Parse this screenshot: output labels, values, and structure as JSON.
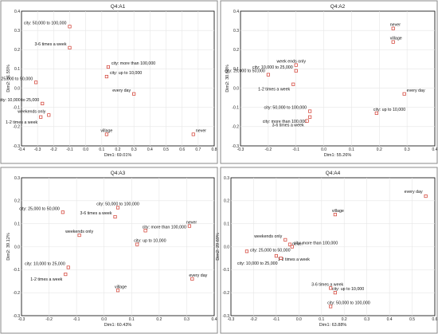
{
  "chart_data": [
    {
      "type": "scatter",
      "title": "Q4:A1",
      "xlabel": "Dim1: 69.01%",
      "ylabel": "Dim2: 31.55%",
      "xlim": [
        -0.4,
        0.8
      ],
      "ylim": [
        -0.3,
        0.4
      ],
      "xticks": [
        "-0.4",
        "-0.3",
        "-0.2",
        "-0.1",
        "0.0",
        "0.1",
        "0.2",
        "0.3",
        "0.4",
        "0.5",
        "0.6",
        "0.7",
        "0.8"
      ],
      "yticks": [
        "-0.3",
        "-0.2",
        "-0.1",
        "0.0",
        "0.1",
        "0.2",
        "0.3",
        "0.4"
      ],
      "grid": true,
      "points": [
        {
          "label": "city: 50,000 to 100,000",
          "x": -0.1,
          "y": 0.32
        },
        {
          "label": "3-6 times a week",
          "x": -0.1,
          "y": 0.21
        },
        {
          "label": "city: more than 100,000",
          "x": 0.14,
          "y": 0.11
        },
        {
          "label": "city: up to 10,000",
          "x": 0.13,
          "y": 0.06
        },
        {
          "label": "city: 25,000 to 50,000",
          "x": -0.31,
          "y": 0.03
        },
        {
          "label": "every day",
          "x": 0.3,
          "y": -0.03
        },
        {
          "label": "city: 10,000 to 25,000",
          "x": -0.27,
          "y": -0.08
        },
        {
          "label": "weekends only",
          "x": -0.23,
          "y": -0.14
        },
        {
          "label": "1-2 times a week",
          "x": -0.28,
          "y": -0.15
        },
        {
          "label": "village",
          "x": 0.13,
          "y": -0.24
        },
        {
          "label": "never",
          "x": 0.67,
          "y": -0.24
        }
      ]
    },
    {
      "type": "scatter",
      "title": "Q4:A2",
      "xlabel": "Dim1: 55.26%",
      "ylabel": "Dim2: 30.68%",
      "xlim": [
        -0.3,
        0.4
      ],
      "ylim": [
        -0.3,
        0.4
      ],
      "xticks": [
        "-0.3",
        "-0.2",
        "-0.1",
        "0.0",
        "0.1",
        "0.2",
        "0.3",
        "0.4"
      ],
      "yticks": [
        "-0.3",
        "-0.2",
        "-0.1",
        "0.0",
        "0.1",
        "0.2",
        "0.3",
        "0.4"
      ],
      "grid": true,
      "points": [
        {
          "label": "never",
          "x": 0.25,
          "y": 0.31
        },
        {
          "label": "village",
          "x": 0.25,
          "y": 0.24
        },
        {
          "label": "week ends only",
          "x": -0.1,
          "y": 0.12
        },
        {
          "label": "city: 10,000 to 25,000",
          "x": -0.1,
          "y": 0.09
        },
        {
          "label": "city: 25,000 to 50,000",
          "x": -0.2,
          "y": 0.07
        },
        {
          "label": "1-2 times a week",
          "x": -0.11,
          "y": 0.02
        },
        {
          "label": "every day",
          "x": 0.29,
          "y": -0.03
        },
        {
          "label": "city: 50,000 to 100,000",
          "x": -0.05,
          "y": -0.12
        },
        {
          "label": "city: up to 10,000",
          "x": 0.19,
          "y": -0.13
        },
        {
          "label": "city: more than 100,000",
          "x": -0.05,
          "y": -0.15
        },
        {
          "label": "3-6 times a week",
          "x": -0.06,
          "y": -0.17
        }
      ]
    },
    {
      "type": "scatter",
      "title": "Q4:A3",
      "xlabel": "Dim1: 60.43%",
      "ylabel": "Dim2: 39.12%",
      "xlim": [
        -0.3,
        0.4
      ],
      "ylim": [
        -0.3,
        0.3
      ],
      "xticks": [
        "-0.3",
        "-0.2",
        "-0.1",
        "0.0",
        "0.1",
        "0.2",
        "0.3",
        "0.4"
      ],
      "yticks": [
        "-0.3",
        "-0.2",
        "-0.1",
        "0.0",
        "0.1",
        "0.2",
        "0.3"
      ],
      "grid": true,
      "points": [
        {
          "label": "city: 50,000 to 100,000",
          "x": 0.05,
          "y": 0.17
        },
        {
          "label": "3-6 times a week",
          "x": 0.04,
          "y": 0.13
        },
        {
          "label": "city: 25,000 to 50,000",
          "x": -0.15,
          "y": 0.15
        },
        {
          "label": "never",
          "x": 0.31,
          "y": 0.09
        },
        {
          "label": "weekends only",
          "x": -0.09,
          "y": 0.05
        },
        {
          "label": "city: more than 100,000",
          "x": 0.15,
          "y": 0.07
        },
        {
          "label": "city: up to 10,000",
          "x": 0.12,
          "y": 0.01
        },
        {
          "label": "city: 10,000 to 25,000",
          "x": -0.13,
          "y": -0.09
        },
        {
          "label": "1-2 times a week",
          "x": -0.14,
          "y": -0.12
        },
        {
          "label": "every day",
          "x": 0.32,
          "y": -0.14
        },
        {
          "label": "village",
          "x": 0.05,
          "y": -0.19
        }
      ]
    },
    {
      "type": "scatter",
      "title": "Q4:A4",
      "xlabel": "Dim1: 63.88%",
      "ylabel": "Dim2: 29.69%",
      "xlim": [
        -0.3,
        0.6
      ],
      "ylim": [
        -0.3,
        0.3
      ],
      "xticks": [
        "-0.3",
        "-0.2",
        "-0.1",
        "0.0",
        "0.1",
        "0.2",
        "0.3",
        "0.4",
        "0.5",
        "0.6"
      ],
      "yticks": [
        "-0.3",
        "-0.2",
        "-0.1",
        "0.0",
        "0.1",
        "0.2",
        "0.3"
      ],
      "grid": true,
      "points": [
        {
          "label": "every day",
          "x": 0.56,
          "y": 0.22
        },
        {
          "label": "village",
          "x": 0.16,
          "y": 0.14
        },
        {
          "label": "weekends only",
          "x": -0.06,
          "y": 0.03
        },
        {
          "label": "never",
          "x": -0.04,
          "y": 0.01
        },
        {
          "label": "city: more than 100,000",
          "x": -0.03,
          "y": 0.0
        },
        {
          "label": "city: 25,000 to 50,000",
          "x": -0.23,
          "y": -0.02
        },
        {
          "label": "1-2 times a week",
          "x": -0.1,
          "y": -0.04
        },
        {
          "label": "city: 10,000 to 25,000",
          "x": -0.08,
          "y": -0.05
        },
        {
          "label": "3-6 times a week",
          "x": 0.14,
          "y": -0.18
        },
        {
          "label": "city: up to 10,000",
          "x": 0.16,
          "y": -0.2
        },
        {
          "label": "city: 50,000 to 100,000",
          "x": 0.14,
          "y": -0.26
        }
      ]
    }
  ]
}
